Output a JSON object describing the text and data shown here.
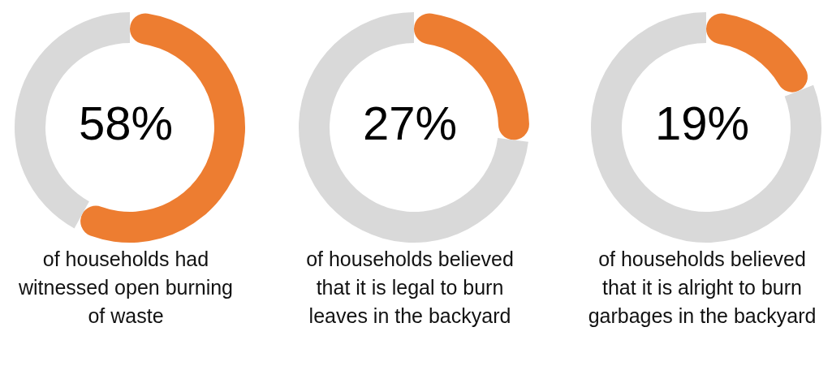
{
  "chart_data": [
    {
      "type": "donut",
      "title": "58%",
      "categories": [
        null,
        null
      ],
      "values": [
        58,
        42
      ],
      "colors": [
        "#ed7d31",
        "#d9d9d9"
      ],
      "annotations": [
        "of households had witnessed open burning of waste"
      ]
    },
    {
      "type": "donut",
      "title": "27%",
      "categories": [
        null,
        null
      ],
      "values": [
        27,
        73
      ],
      "colors": [
        "#ed7d31",
        "#d9d9d9"
      ],
      "annotations": [
        "of households believed that it is legal to burn leaves in the backyard"
      ]
    },
    {
      "type": "donut",
      "title": "19%",
      "categories": [
        null,
        null
      ],
      "values": [
        19,
        81
      ],
      "colors": [
        "#ed7d31",
        "#d9d9d9"
      ],
      "annotations": [
        "of households believed that it is alright to burn garbages in the backyard"
      ]
    }
  ]
}
